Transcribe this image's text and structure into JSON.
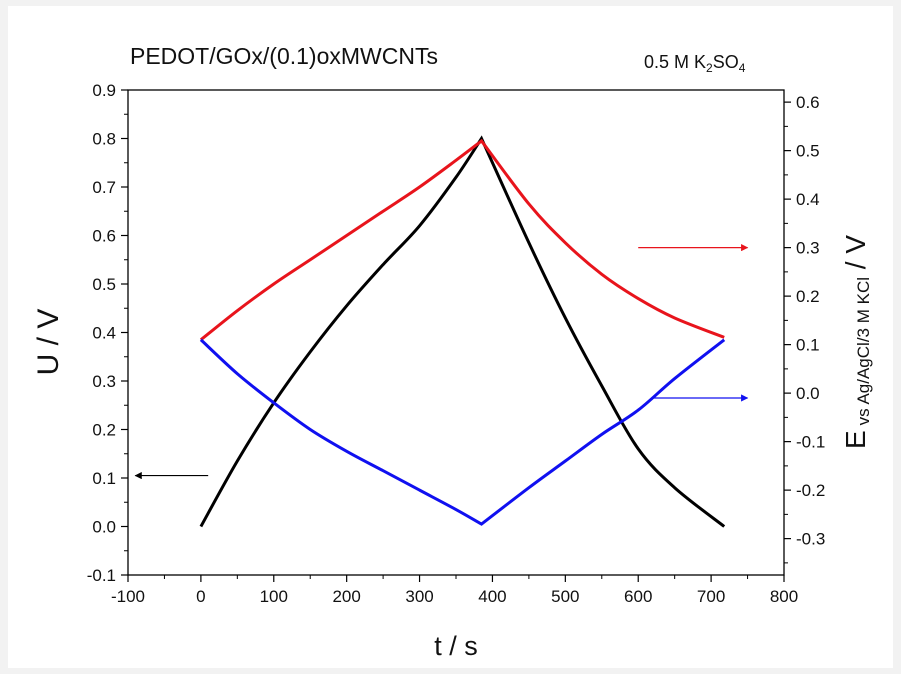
{
  "chart_data": {
    "type": "line",
    "title": "PEDOT/GOx/(0.1)oxMWCNTs",
    "annotation": {
      "prefix": "0.5 M K",
      "sub1": "2",
      "mid": "SO",
      "sub2": "4"
    },
    "xlabel": "t / s",
    "ylabel_left": "U / V",
    "ylabel_right": {
      "main": "E",
      "sub": "vs Ag/AgCl/3 M KCl",
      "suffix": " / V"
    },
    "xlim": [
      -100,
      800
    ],
    "ylim_left": [
      -0.1,
      0.9
    ],
    "ylim_right": [
      -0.375,
      0.625
    ],
    "x_ticks": [
      "-100",
      "0",
      "100",
      "200",
      "300",
      "400",
      "500",
      "600",
      "700",
      "800"
    ],
    "y_ticks_left": [
      "-0.1",
      "0.0",
      "0.1",
      "0.2",
      "0.3",
      "0.4",
      "0.5",
      "0.6",
      "0.7",
      "0.8",
      "0.9"
    ],
    "y_ticks_right": [
      "-0.3",
      "-0.2",
      "-0.1",
      "0.0",
      "0.1",
      "0.2",
      "0.3",
      "0.4",
      "0.5",
      "0.6"
    ],
    "grid": false,
    "series": [
      {
        "axis": "left",
        "color": "#000000",
        "x": [
          0,
          50,
          100,
          150,
          200,
          250,
          300,
          350,
          385,
          450,
          500,
          550,
          600,
          650,
          718
        ],
        "y": [
          0.0,
          0.135,
          0.255,
          0.36,
          0.455,
          0.54,
          0.62,
          0.72,
          0.8,
          0.585,
          0.43,
          0.29,
          0.16,
          0.08,
          0.0
        ]
      },
      {
        "axis": "right",
        "color": "#e8141c",
        "x": [
          0,
          50,
          100,
          150,
          200,
          250,
          300,
          350,
          385,
          450,
          500,
          550,
          600,
          650,
          718
        ],
        "y": [
          0.11,
          0.17,
          0.225,
          0.275,
          0.325,
          0.375,
          0.425,
          0.48,
          0.52,
          0.39,
          0.31,
          0.245,
          0.195,
          0.155,
          0.115
        ]
      },
      {
        "axis": "right",
        "color": "#1010f0",
        "x": [
          0,
          50,
          100,
          150,
          200,
          250,
          300,
          350,
          385,
          450,
          500,
          550,
          600,
          650,
          718
        ],
        "y": [
          0.11,
          0.04,
          -0.02,
          -0.075,
          -0.12,
          -0.16,
          -0.2,
          -0.24,
          -0.27,
          -0.195,
          -0.14,
          -0.085,
          -0.035,
          0.03,
          0.11
        ]
      }
    ],
    "axis_arrows": [
      {
        "axis": "left",
        "direction": "left",
        "color": "#000000",
        "x_from": 10,
        "x_to": -90,
        "y": 0.105
      },
      {
        "axis": "right",
        "direction": "right",
        "color": "#e8141c",
        "x_from": 600,
        "x_to": 750,
        "y": 0.3
      },
      {
        "axis": "right",
        "direction": "right",
        "color": "#1010f0",
        "x_from": 620,
        "x_to": 750,
        "y": -0.01
      }
    ]
  }
}
